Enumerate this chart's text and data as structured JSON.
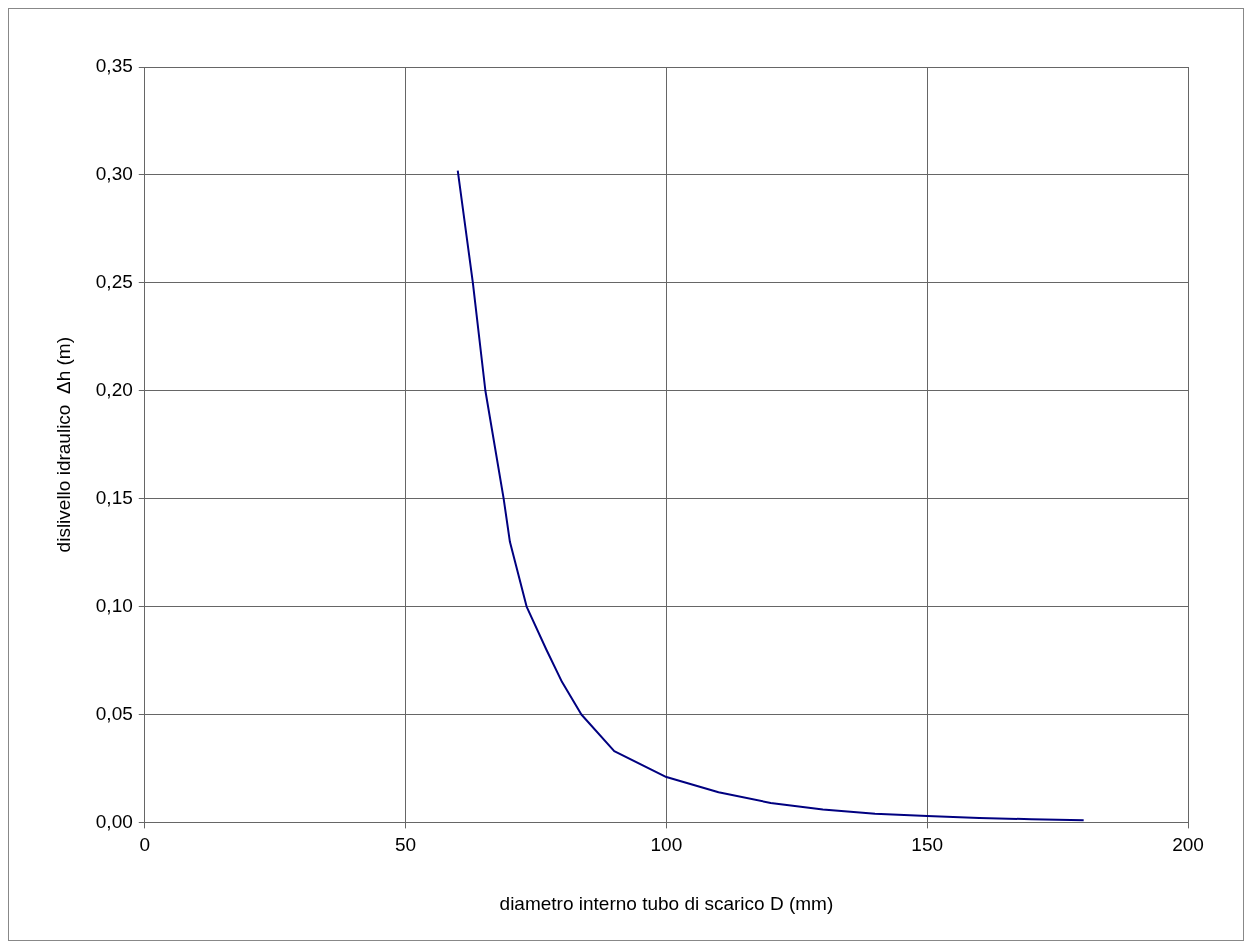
{
  "chart_data": {
    "type": "line",
    "xlabel": "diametro interno tubo di scarico D (mm)",
    "ylabel": "dislivello idraulico  Δh (m)",
    "xlim": [
      0,
      200
    ],
    "xticks": [
      0,
      50,
      100,
      150,
      200
    ],
    "ylim": [
      0,
      0.35
    ],
    "yticks": [
      {
        "value": 0,
        "label": "0,00"
      },
      {
        "value": 0.05,
        "label": "0,05"
      },
      {
        "value": 0.1,
        "label": "0,10"
      },
      {
        "value": 0.15,
        "label": "0,15"
      },
      {
        "value": 0.2,
        "label": "0,20"
      },
      {
        "value": 0.25,
        "label": "0,25"
      },
      {
        "value": 0.3,
        "label": "0,30"
      },
      {
        "value": 0.35,
        "label": "0,35"
      }
    ],
    "grid": true,
    "legend": false,
    "marker": "none",
    "line_style": "solid",
    "series": [
      {
        "color": "#000080",
        "x": [
          60,
          62.9,
          65.3,
          68.8,
          70,
          73.2,
          77,
          80,
          83.7,
          90,
          100,
          110,
          120,
          130,
          140,
          150,
          160,
          170,
          180
        ],
        "values": [
          0.302,
          0.25,
          0.2,
          0.15,
          0.13,
          0.1,
          0.08,
          0.065,
          0.05,
          0.033,
          0.021,
          0.014,
          0.009,
          0.006,
          0.004,
          0.003,
          0.002,
          0.0015,
          0.001
        ]
      }
    ]
  }
}
